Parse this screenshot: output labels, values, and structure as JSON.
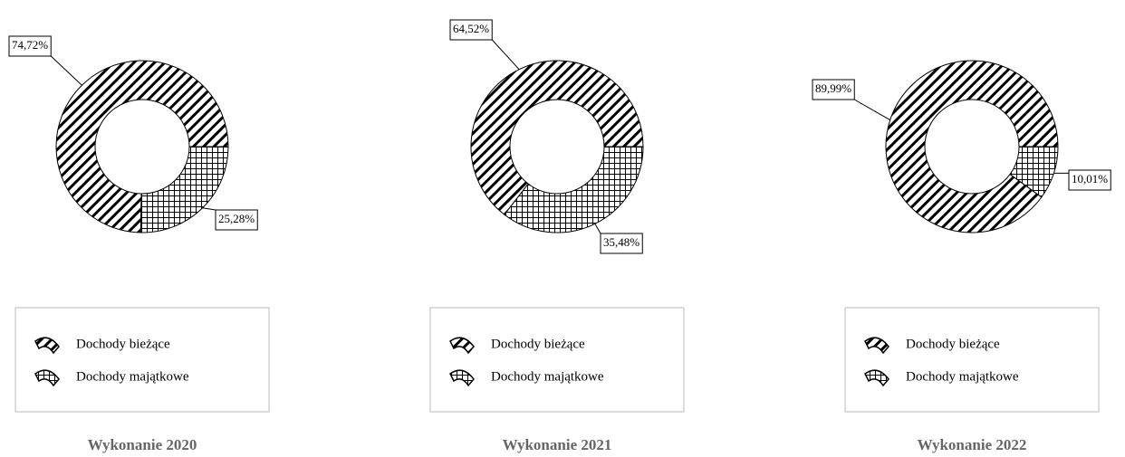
{
  "chart_data": [
    {
      "type": "pie",
      "title": "Wykonanie 2020",
      "categories": [
        "Dochody bieżące",
        "Dochody majątkowe"
      ],
      "values": [
        74.72,
        25.28
      ],
      "value_labels": [
        "74,72%",
        "25,28%"
      ]
    },
    {
      "type": "pie",
      "title": "Wykonanie 2021",
      "categories": [
        "Dochody bieżące",
        "Dochody majątkowe"
      ],
      "values": [
        64.52,
        35.48
      ],
      "value_labels": [
        "64,52%",
        "35,48%"
      ]
    },
    {
      "type": "pie",
      "title": "Wykonanie 2022",
      "categories": [
        "Dochody bieżące",
        "Dochody majątkowe"
      ],
      "values": [
        89.99,
        10.01
      ],
      "value_labels": [
        "89,99%",
        "10,01%"
      ]
    }
  ]
}
